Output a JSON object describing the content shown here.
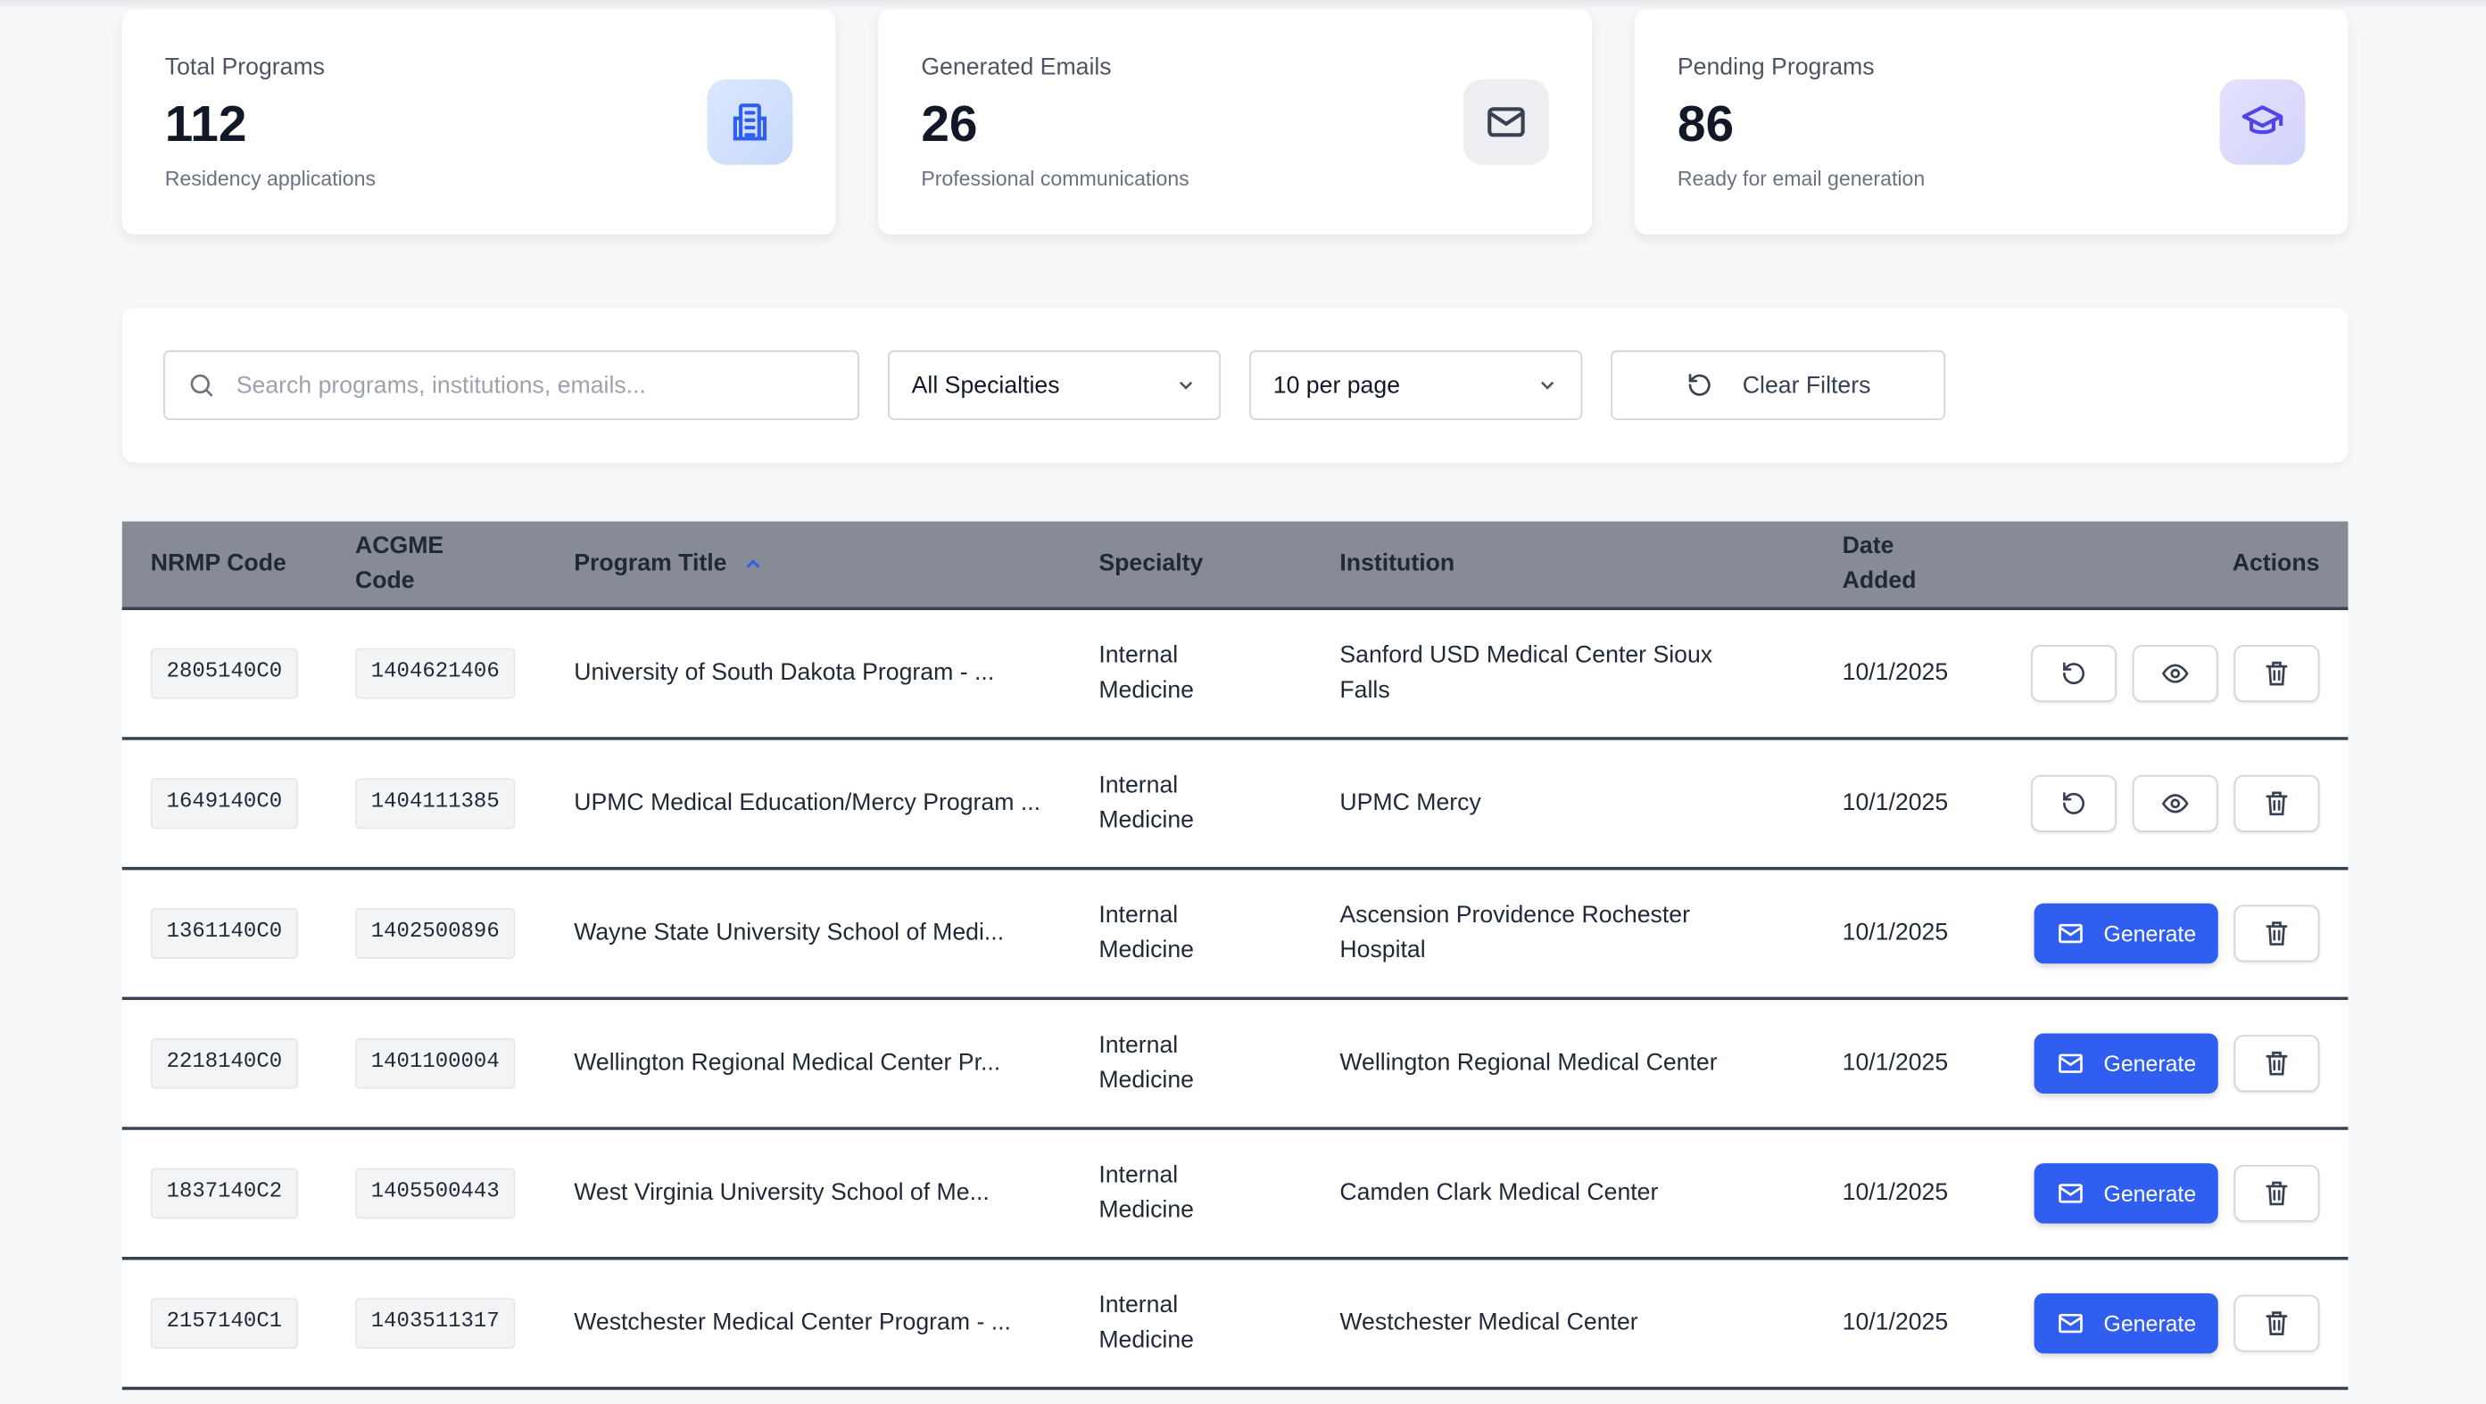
{
  "stats": [
    {
      "label": "Total Programs",
      "value": "112",
      "sub": "Residency applications",
      "icon": "building-icon"
    },
    {
      "label": "Generated Emails",
      "value": "26",
      "sub": "Professional communications",
      "icon": "mail-icon"
    },
    {
      "label": "Pending Programs",
      "value": "86",
      "sub": "Ready for email generation",
      "icon": "graduation-cap-icon"
    }
  ],
  "filters": {
    "search_placeholder": "Search programs, institutions, emails...",
    "specialty": "All Specialties",
    "per_page": "10 per page",
    "clear": "Clear Filters"
  },
  "table": {
    "headers": {
      "nrmp": "NRMP Code",
      "acgme1": "ACGME",
      "acgme2": "Code",
      "title": "Program Title",
      "specialty": "Specialty",
      "institution": "Institution",
      "date1": "Date",
      "date2": "Added",
      "actions": "Actions"
    },
    "sort": {
      "column": "Program Title",
      "direction": "ascending"
    },
    "generate_label": "Generate",
    "rows": [
      {
        "nrmp": "2805140C0",
        "acgme": "1404621406",
        "title": "University of South Dakota Program - ...",
        "specialty": "Internal Medicine",
        "institution": "Sanford USD Medical Center Sioux Falls",
        "date": "10/1/2025",
        "generated": true
      },
      {
        "nrmp": "1649140C0",
        "acgme": "1404111385",
        "title": "UPMC Medical Education/Mercy Program ...",
        "specialty": "Internal Medicine",
        "institution": "UPMC Mercy",
        "date": "10/1/2025",
        "generated": true
      },
      {
        "nrmp": "1361140C0",
        "acgme": "1402500896",
        "title": "Wayne State University School of Medi...",
        "specialty": "Internal Medicine",
        "institution": "Ascension Providence Rochester Hospital",
        "date": "10/1/2025",
        "generated": false
      },
      {
        "nrmp": "2218140C0",
        "acgme": "1401100004",
        "title": "Wellington Regional Medical Center Pr...",
        "specialty": "Internal Medicine",
        "institution": "Wellington Regional Medical Center",
        "date": "10/1/2025",
        "generated": false
      },
      {
        "nrmp": "1837140C2",
        "acgme": "1405500443",
        "title": "West Virginia University School of Me...",
        "specialty": "Internal Medicine",
        "institution": "Camden Clark Medical Center",
        "date": "10/1/2025",
        "generated": false
      },
      {
        "nrmp": "2157140C1",
        "acgme": "1403511317",
        "title": "Westchester Medical Center Program - ...",
        "specialty": "Internal Medicine",
        "institution": "Westchester Medical Center",
        "date": "10/1/2025",
        "generated": false
      }
    ]
  },
  "colors": {
    "accent": "#2f5ef0",
    "header_bg": "#878b95",
    "page_bg": "#f7f8fa"
  }
}
